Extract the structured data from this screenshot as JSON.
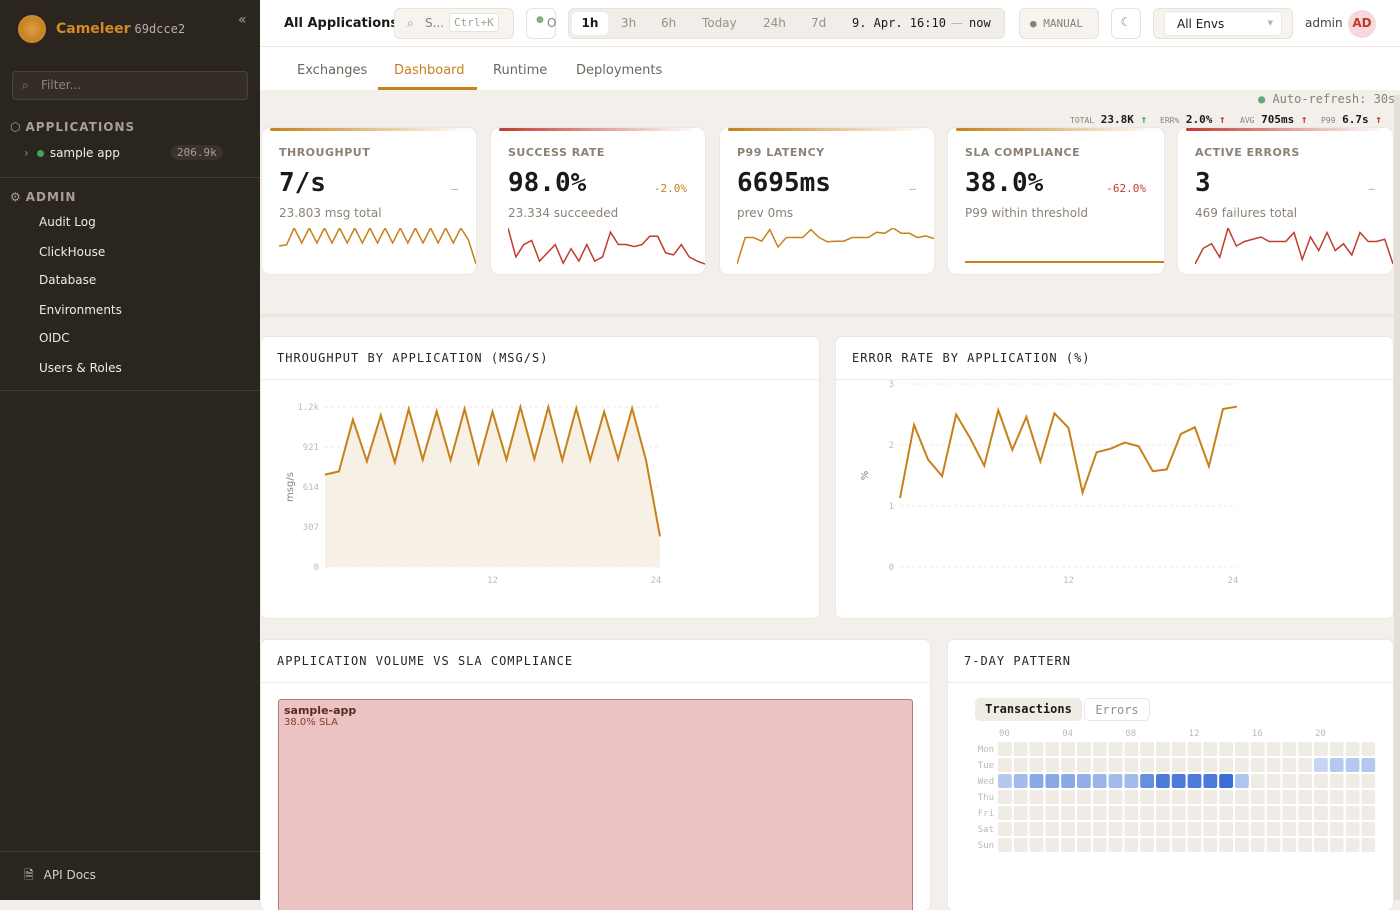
{
  "sidebar": {
    "brand": "Cameleer",
    "version": "69dcce2",
    "filter_placeholder": "Filter...",
    "applications_label": "APPLICATIONS",
    "apps": [
      {
        "name": "sample app",
        "count": "206.9k",
        "status_color": "#3fa65a"
      }
    ],
    "admin_label": "ADMIN",
    "admin_items": [
      "Audit Log",
      "ClickHouse",
      "Database",
      "Environments",
      "OIDC",
      "Users & Roles"
    ],
    "api_docs": "API Docs"
  },
  "header": {
    "title": "All Applications",
    "search": "S...",
    "shortcut": "Ctrl+K",
    "status": "O",
    "ranges": [
      "1h",
      "3h",
      "6h",
      "Today",
      "24h",
      "7d"
    ],
    "active_range": "1h",
    "range_from": "9. Apr. 16:10",
    "range_sep": "—",
    "range_to": "now",
    "refresh_mode": "MANUAL",
    "env": "All Envs",
    "user": "admin",
    "avatar": "AD"
  },
  "tabs": [
    "Exchanges",
    "Dashboard",
    "Runtime",
    "Deployments"
  ],
  "active_tab": "Dashboard",
  "stats": {
    "total_label": "TOTAL",
    "total": "23.8K",
    "err_label": "ERR%",
    "err": "2.0%",
    "avg_label": "AVG",
    "avg": "705ms",
    "p99_label": "P99",
    "p99": "6.7s",
    "arrow": "↑"
  },
  "auto_refresh": "Auto-refresh: 30s",
  "kpis": [
    {
      "label": "THROUGHPUT",
      "value": "7/s",
      "delta": "–",
      "sub": "23.803 msg total",
      "color": "#c7811b",
      "spark": [
        3,
        3.2,
        6,
        3.5,
        6,
        3.5,
        6,
        3.5,
        6,
        3.5,
        6,
        3.5,
        6,
        3.5,
        6,
        3.5,
        6,
        3.5,
        6,
        3.5,
        6,
        3.5,
        6,
        3.5,
        6,
        4,
        0
      ]
    },
    {
      "label": "SUCCESS RATE",
      "value": "98.0%",
      "delta": "-2.0%",
      "sub": "23.334 succeeded",
      "color": "#c23b2f",
      "spark": [
        9,
        2,
        5,
        6,
        1,
        3,
        5,
        0.5,
        4,
        1,
        5,
        1,
        2,
        8,
        5,
        5,
        4.5,
        5,
        7,
        7,
        3,
        2.5,
        5,
        2,
        1,
        0.3
      ]
    },
    {
      "label": "P99 LATENCY",
      "value": "6695ms",
      "delta": "–",
      "sub": "prev 0ms",
      "color": "#c7811b",
      "spark": [
        0,
        5,
        5,
        4.3,
        6.5,
        3.2,
        5,
        5,
        5,
        6.5,
        5,
        4.2,
        4.3,
        4.3,
        5,
        5,
        5,
        6,
        5.8,
        6.8,
        5.8,
        5.8,
        5,
        5.3,
        4.8
      ]
    },
    {
      "label": "SLA COMPLIANCE",
      "value": "38.0%",
      "delta": "-62.0%",
      "sub": "P99 within threshold",
      "color": "#c7811b",
      "spark": [
        0,
        0
      ]
    },
    {
      "label": "ACTIVE ERRORS",
      "value": "3",
      "delta": "–",
      "sub": "469 failures total",
      "color": "#c23b2f",
      "spark": [
        0,
        3.5,
        4.5,
        1.5,
        8,
        4,
        5,
        5.5,
        6,
        5,
        5,
        5,
        7,
        1,
        6,
        3,
        7,
        3,
        4.5,
        2,
        7,
        5,
        5,
        5.5,
        0
      ]
    }
  ],
  "chart_data": [
    {
      "type": "area",
      "title": "THROUGHPUT BY APPLICATION (MSG/S)",
      "ylabel": "msg/s",
      "xlim": [
        0,
        24
      ],
      "ylim": [
        0,
        1228
      ],
      "yticks": [
        "0",
        "307",
        "614",
        "921",
        "1.2k"
      ],
      "ytick_values": [
        0,
        307,
        614,
        921,
        1228
      ],
      "xticks": [
        "12",
        "24"
      ],
      "grid": true,
      "x": [
        0,
        1,
        2,
        3,
        4,
        5,
        6,
        7,
        8,
        9,
        10,
        11,
        12,
        13,
        14,
        15,
        16,
        17,
        18,
        19,
        20,
        21,
        22,
        23,
        24
      ],
      "values": [
        709,
        734,
        1131,
        811,
        1164,
        803,
        1213,
        824,
        1195,
        819,
        1213,
        798,
        1192,
        824,
        1228,
        829,
        1228,
        819,
        1218,
        819,
        1192,
        829,
        1218,
        819,
        235
      ]
    },
    {
      "type": "line",
      "title": "ERROR RATE BY APPLICATION (%)",
      "ylabel": "%",
      "xlim": [
        0,
        24
      ],
      "ylim": [
        0,
        3
      ],
      "yticks": [
        "0",
        "1",
        "2",
        "3"
      ],
      "ytick_values": [
        0,
        1,
        2,
        3
      ],
      "xticks": [
        "12",
        "24"
      ],
      "grid": true,
      "x": [
        0,
        1,
        2,
        3,
        4,
        5,
        6,
        7,
        8,
        9,
        10,
        11,
        12,
        13,
        14,
        15,
        16,
        17,
        18,
        19,
        20,
        21,
        22,
        23,
        24
      ],
      "values": [
        1.13,
        2.33,
        1.76,
        1.49,
        2.5,
        2.11,
        1.66,
        2.57,
        1.92,
        2.46,
        1.73,
        2.52,
        2.28,
        1.22,
        1.88,
        1.94,
        2.04,
        1.98,
        1.57,
        1.6,
        2.18,
        2.29,
        1.65,
        2.59,
        2.63
      ]
    },
    {
      "type": "heatmap",
      "title": "7-DAY PATTERN",
      "rows": [
        "Mon",
        "Tue",
        "Wed",
        "Thu",
        "Fri",
        "Sat",
        "Sun"
      ],
      "columns": 24,
      "xticks": [
        "00",
        "04",
        "08",
        "12",
        "16",
        "20"
      ],
      "tabs": [
        "Transactions",
        "Errors"
      ],
      "active_tab": "Transactions",
      "cells": [
        {
          "row": "Tue",
          "start": 20,
          "values": [
            0.15,
            0.25,
            0.25,
            0.25
          ]
        },
        {
          "row": "Wed",
          "start": 0,
          "values": [
            0.25,
            0.35,
            0.5,
            0.5,
            0.5,
            0.45,
            0.4,
            0.35,
            0.35,
            0.7,
            0.85,
            0.85,
            0.85,
            0.85,
            0.95,
            0.28
          ]
        }
      ]
    }
  ],
  "treemap": {
    "title": "APPLICATION VOLUME VS SLA COMPLIANCE",
    "items": [
      {
        "name": "sample-app",
        "sla": "38.0% SLA"
      }
    ]
  }
}
